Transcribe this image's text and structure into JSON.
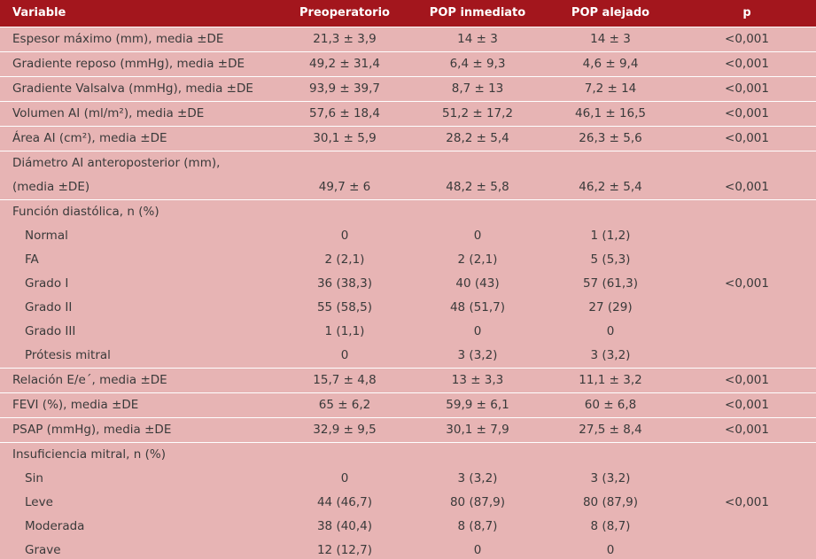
{
  "table": {
    "header": [
      "Variable",
      "Preoperatorio",
      "POP inmediato",
      "POP alejado",
      "p"
    ],
    "rows": [
      {
        "label": "Espesor máximo (mm), media ±DE",
        "values": [
          "21,3 ± 3,9",
          "14 ± 3",
          "14 ± 3"
        ],
        "p": "<0,001"
      },
      {
        "label": "Gradiente reposo (mmHg), media ±DE",
        "values": [
          "49,2 ± 31,4",
          "6,4 ± 9,3",
          "4,6 ± 9,4"
        ],
        "p": "<0,001"
      },
      {
        "label": "Gradiente Valsalva (mmHg), media ±DE",
        "values": [
          "93,9 ± 39,7",
          "8,7 ± 13",
          "7,2 ± 14"
        ],
        "p": "<0,001"
      },
      {
        "label": "Volumen AI (ml/m²), media ±DE",
        "values": [
          "57,6 ± 18,4",
          "51,2 ± 17,2",
          "46,1 ± 16,5"
        ],
        "p": "<0,001"
      },
      {
        "label": "Área AI (cm²), media ±DE",
        "values": [
          "30,1 ± 5,9",
          "28,2 ± 5,4",
          "26,3 ± 5,6"
        ],
        "p": "<0,001"
      },
      {
        "label_lines": [
          "Diámetro AI anteroposterior (mm),",
          "(media ±DE)"
        ],
        "values": [
          "49,7 ± 6",
          "48,2 ± 5,8",
          "46,2 ± 5,4"
        ],
        "p": "<0,001"
      },
      {
        "label": "Función diastólica, n (%)",
        "p": "<0,001",
        "subrows": [
          {
            "label": "Normal",
            "values": [
              "0",
              "0",
              "1 (1,2)"
            ]
          },
          {
            "label": "FA",
            "values": [
              "2 (2,1)",
              "2 (2,1)",
              "5 (5,3)"
            ]
          },
          {
            "label": "Grado I",
            "values": [
              "36 (38,3)",
              "40 (43)",
              "57 (61,3)"
            ]
          },
          {
            "label": "Grado II",
            "values": [
              "55 (58,5)",
              "48 (51,7)",
              "27 (29)"
            ]
          },
          {
            "label": "Grado III",
            "values": [
              "1 (1,1)",
              "0",
              "0"
            ]
          },
          {
            "label": "Prótesis mitral",
            "values": [
              "0",
              "3 (3,2)",
              "3 (3,2)"
            ]
          }
        ]
      },
      {
        "label": "Relación E/e´, media ±DE",
        "values": [
          "15,7 ± 4,8",
          "13 ± 3,3",
          "11,1 ± 3,2"
        ],
        "p": "<0,001"
      },
      {
        "label": "FEVI (%), media ±DE",
        "values": [
          "65 ± 6,2",
          "59,9 ± 6,1",
          "60 ± 6,8"
        ],
        "p": "<0,001"
      },
      {
        "label": "PSAP (mmHg), media ±DE",
        "values": [
          "32,9 ± 9,5",
          "30,1 ± 7,9",
          "27,5 ± 8,4"
        ],
        "p": "<0,001"
      },
      {
        "label": "Insuficiencia mitral, n (%)",
        "p": "<0,001",
        "subrows": [
          {
            "label": "Sin",
            "values": [
              "0",
              "3 (3,2)",
              "3 (3,2)"
            ]
          },
          {
            "label": "Leve",
            "values": [
              "44 (46,7)",
              "80 (87,9)",
              "80 (87,9)"
            ]
          },
          {
            "label": "Moderada",
            "values": [
              "38 (40,4)",
              "8 (8,7)",
              "8 (8,7)"
            ]
          },
          {
            "label": "Grave",
            "values": [
              "12 (12,7)",
              "0",
              "0"
            ]
          }
        ]
      }
    ]
  }
}
